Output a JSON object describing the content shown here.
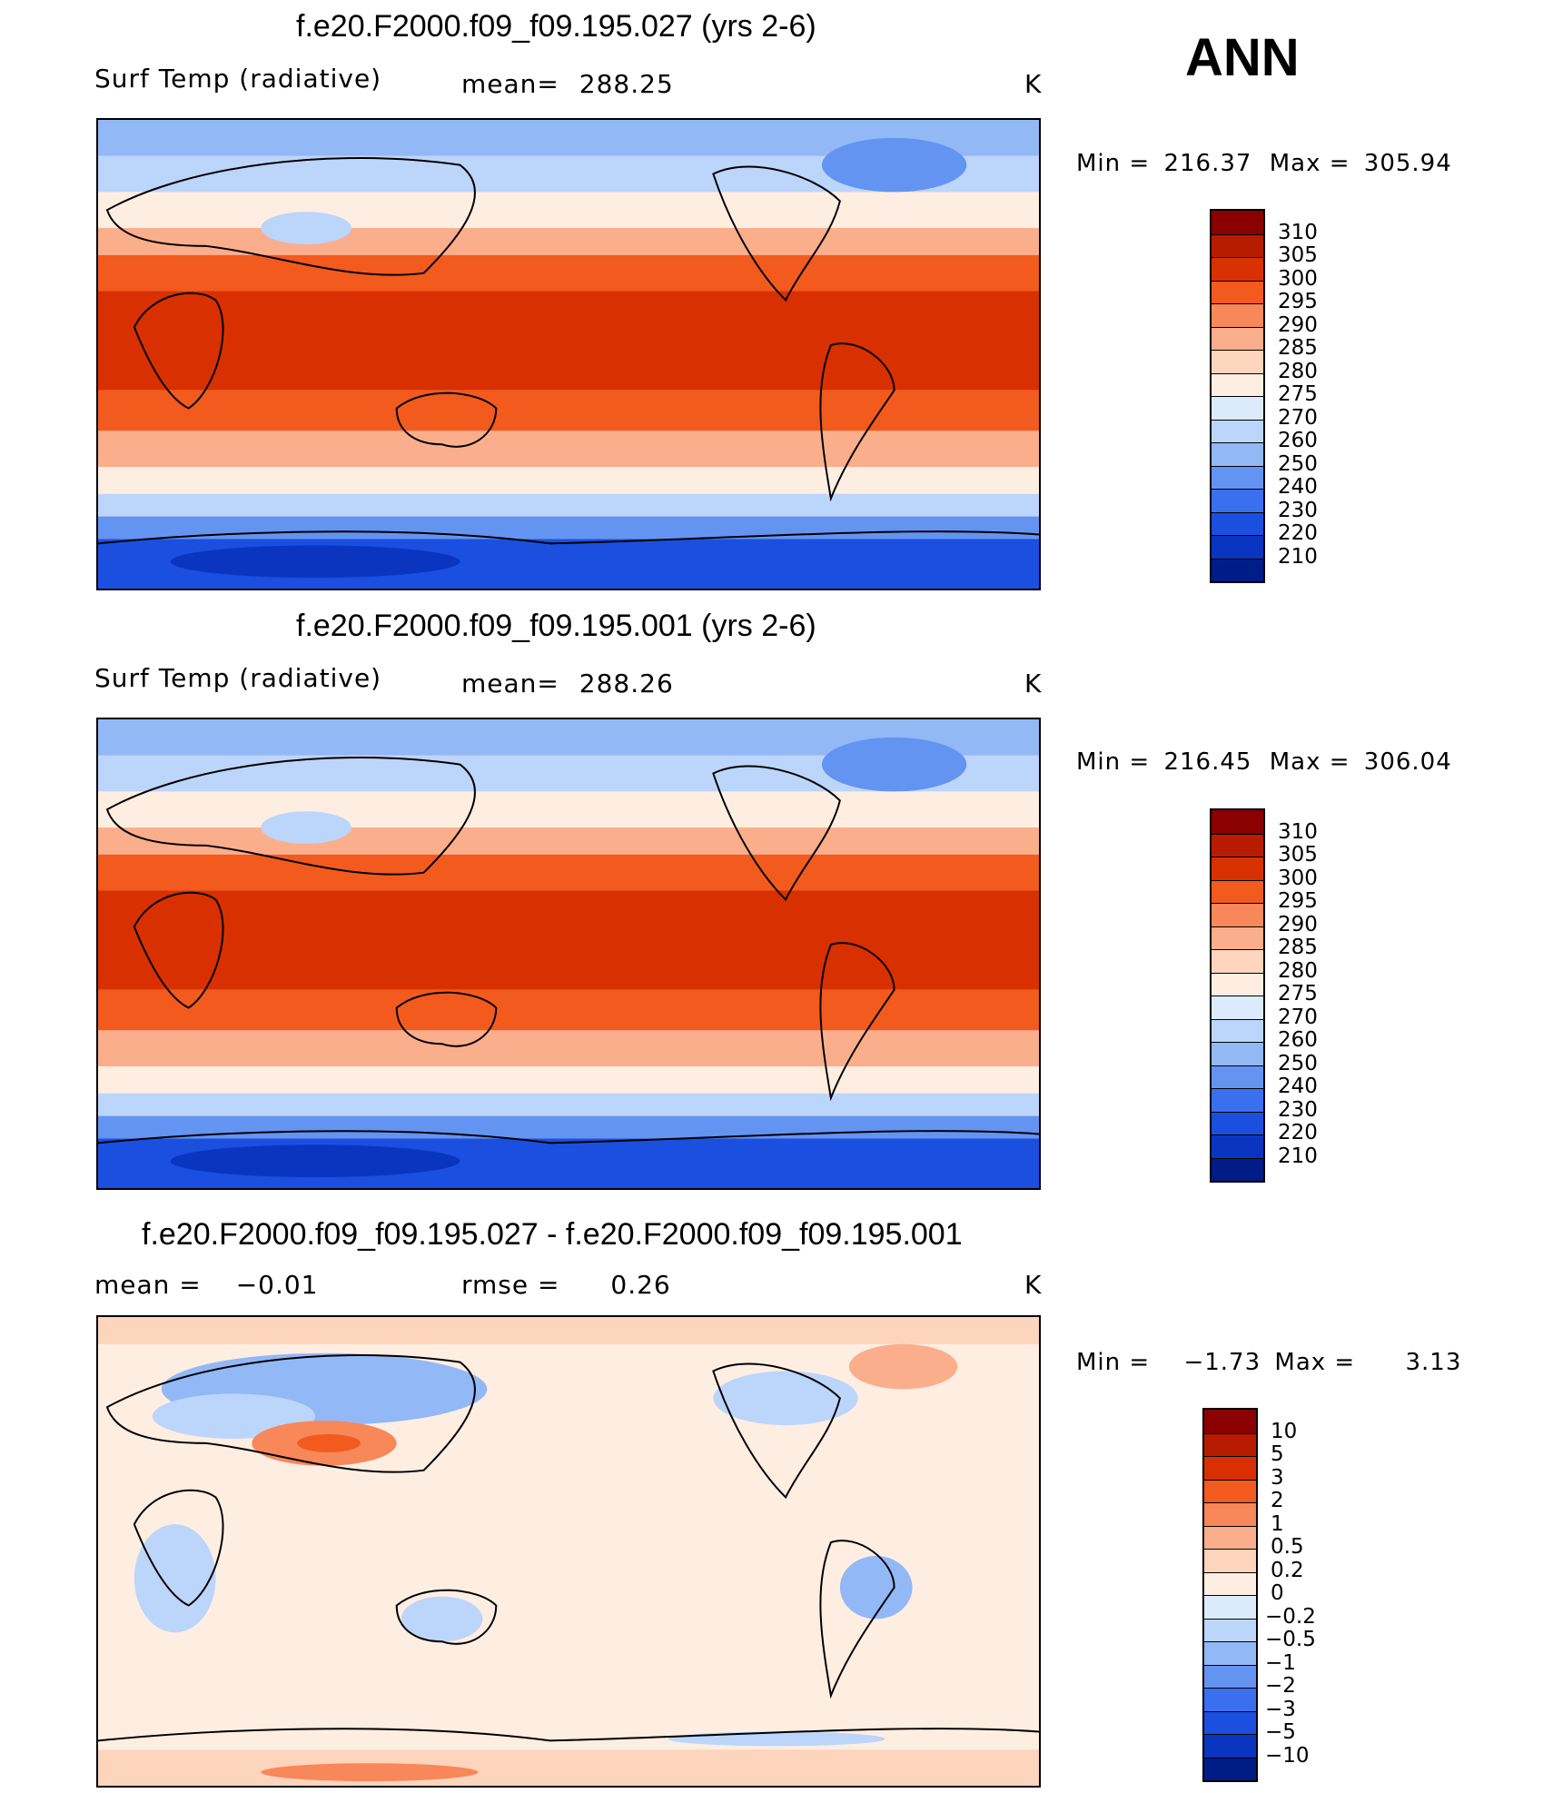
{
  "season": "ANN",
  "units_label": "K",
  "panels": [
    {
      "title": "f.e20.F2000.f09_f09.195.027 (yrs 2-6)",
      "variable": "Surf Temp (radiative)",
      "mean_label": "mean=",
      "mean_value": "288.25",
      "units": "K",
      "min_label": "Min =",
      "min_value": "216.37",
      "max_label": "Max =",
      "max_value": "305.94"
    },
    {
      "title": "f.e20.F2000.f09_f09.195.001 (yrs 2-6)",
      "variable": "Surf Temp (radiative)",
      "mean_label": "mean=",
      "mean_value": "288.26",
      "units": "K",
      "min_label": "Min =",
      "min_value": "216.45",
      "max_label": "Max =",
      "max_value": "306.04"
    },
    {
      "title": "f.e20.F2000.f09_f09.195.027 - f.e20.F2000.f09_f09.195.001",
      "mean_label": "mean =",
      "mean_value": "−0.01",
      "rmse_label": "rmse =",
      "rmse_value": "0.26",
      "units": "K",
      "min_label": "Min =",
      "min_value": "−1.73",
      "max_label": "Max =",
      "max_value": "3.13"
    }
  ],
  "chart_data": [
    {
      "type": "heatmap",
      "title": "f.e20.F2000.f09_f09.195.027 (yrs 2-6)",
      "variable": "Surf Temp (radiative)",
      "units": "K",
      "mean": 288.25,
      "min": 216.37,
      "max": 305.94,
      "colorbar_levels": [
        "310",
        "305",
        "300",
        "295",
        "290",
        "285",
        "280",
        "275",
        "270",
        "260",
        "250",
        "240",
        "230",
        "220",
        "210"
      ],
      "colors": [
        "#8b0000",
        "#b81c00",
        "#d83000",
        "#f25a1e",
        "#f8875a",
        "#fbae8c",
        "#fdd4bc",
        "#feeee2",
        "#dcebfc",
        "#bcd5fa",
        "#93b8f6",
        "#6494f2",
        "#3a6ff0",
        "#1a4fe0",
        "#0a35c0",
        "#001c86"
      ]
    },
    {
      "type": "heatmap",
      "title": "f.e20.F2000.f09_f09.195.001 (yrs 2-6)",
      "variable": "Surf Temp (radiative)",
      "units": "K",
      "mean": 288.26,
      "min": 216.45,
      "max": 306.04,
      "colorbar_levels": [
        "310",
        "305",
        "300",
        "295",
        "290",
        "285",
        "280",
        "275",
        "270",
        "260",
        "250",
        "240",
        "230",
        "220",
        "210"
      ],
      "colors": [
        "#8b0000",
        "#b81c00",
        "#d83000",
        "#f25a1e",
        "#f8875a",
        "#fbae8c",
        "#fdd4bc",
        "#feeee2",
        "#dcebfc",
        "#bcd5fa",
        "#93b8f6",
        "#6494f2",
        "#3a6ff0",
        "#1a4fe0",
        "#0a35c0",
        "#001c86"
      ]
    },
    {
      "type": "heatmap",
      "title": "f.e20.F2000.f09_f09.195.027 - f.e20.F2000.f09_f09.195.001",
      "units": "K",
      "mean": -0.01,
      "rmse": 0.26,
      "min": -1.73,
      "max": 3.13,
      "colorbar_levels": [
        "10",
        "5",
        "3",
        "2",
        "1",
        "0.5",
        "0.2",
        "0",
        "−0.2",
        "−0.5",
        "−1",
        "−2",
        "−3",
        "−5",
        "−10"
      ],
      "colors": [
        "#8b0000",
        "#b81c00",
        "#d83000",
        "#f25a1e",
        "#f8875a",
        "#fbae8c",
        "#fdd4bc",
        "#feeee2",
        "#dcebfc",
        "#bcd5fa",
        "#93b8f6",
        "#6494f2",
        "#3a6ff0",
        "#1a4fe0",
        "#0a35c0",
        "#001c86"
      ]
    }
  ]
}
